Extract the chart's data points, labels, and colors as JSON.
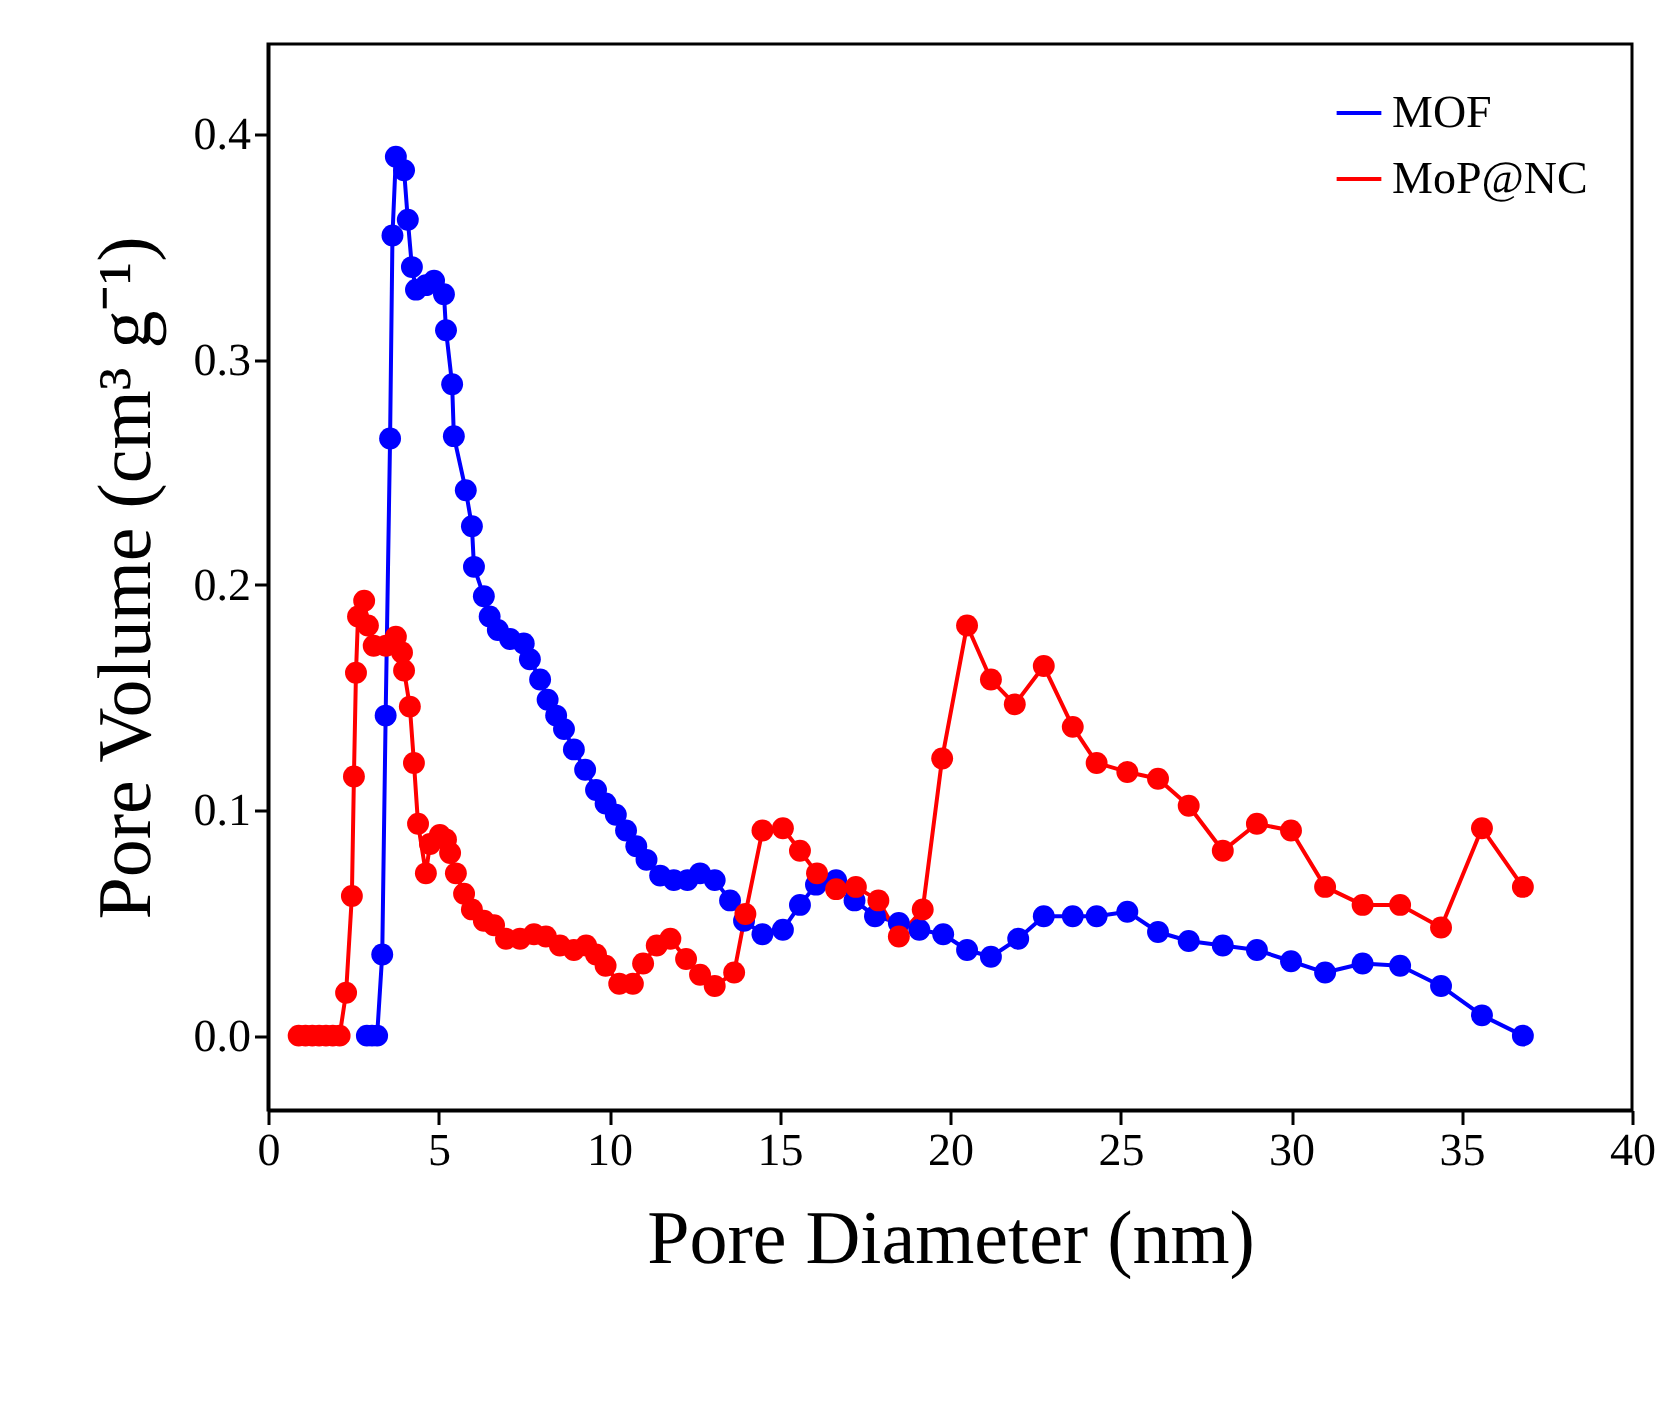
{
  "chart_data": {
    "type": "line",
    "xlabel": "Pore Diameter (nm)",
    "ylabel": "Pore Volume (cm³ g⁻¹)",
    "xlim": [
      0,
      40
    ],
    "xticks": [
      0,
      5,
      10,
      15,
      20,
      25,
      30,
      35,
      40
    ],
    "ylim": [
      -0.033,
      0.44
    ],
    "yticks": [
      {
        "value": 0,
        "label": "0.0"
      },
      0.1,
      0.2,
      0.3,
      0.4
    ],
    "grid": false,
    "legend": "top right",
    "marker": "circle",
    "line_style": "solid",
    "series": [
      {
        "name": "MOF",
        "color": "#0000ff",
        "x": [
          2.9,
          3.05,
          3.2,
          3.35,
          3.45,
          3.58,
          3.65,
          3.75,
          3.99,
          4.1,
          4.22,
          4.34,
          4.63,
          4.87,
          5.16,
          5.22,
          5.4,
          5.45,
          5.8,
          5.98,
          6.04,
          6.33,
          6.5,
          6.74,
          7.1,
          7.5,
          7.68,
          7.98,
          8.2,
          8.45,
          8.68,
          8.97,
          9.3,
          9.62,
          9.9,
          10.2,
          10.5,
          10.8,
          11.1,
          11.5,
          11.9,
          12.3,
          12.67,
          13.1,
          13.55,
          13.96,
          14.5,
          15.1,
          15.6,
          16.07,
          16.66,
          17.2,
          17.8,
          18.5,
          19.1,
          19.8,
          20.5,
          21.2,
          22.0,
          22.75,
          23.6,
          24.3,
          25.2,
          26.1,
          27.0,
          28.0,
          29.0,
          30.0,
          31.0,
          32.1,
          33.2,
          34.4,
          35.6,
          36.8
        ],
        "values": [
          0,
          0,
          0,
          0.036,
          0.142,
          0.265,
          0.355,
          0.39,
          0.384,
          0.362,
          0.341,
          0.331,
          0.333,
          0.335,
          0.329,
          0.313,
          0.289,
          0.266,
          0.242,
          0.226,
          0.208,
          0.195,
          0.186,
          0.18,
          0.176,
          0.174,
          0.167,
          0.158,
          0.149,
          0.142,
          0.136,
          0.127,
          0.118,
          0.109,
          0.103,
          0.098,
          0.091,
          0.084,
          0.078,
          0.071,
          0.069,
          0.069,
          0.072,
          0.069,
          0.06,
          0.051,
          0.045,
          0.047,
          0.058,
          0.067,
          0.069,
          0.06,
          0.053,
          0.05,
          0.047,
          0.045,
          0.038,
          0.035,
          0.043,
          0.053,
          0.053,
          0.053,
          0.055,
          0.046,
          0.042,
          0.04,
          0.038,
          0.033,
          0.028,
          0.032,
          0.031,
          0.022,
          0.009,
          0
        ]
      },
      {
        "name": "MoP@NC",
        "color": "#ff0000",
        "x": [
          0.9,
          1.1,
          1.3,
          1.5,
          1.7,
          1.9,
          2.1,
          2.29,
          2.46,
          2.52,
          2.58,
          2.64,
          2.82,
          2.93,
          3.1,
          3.46,
          3.75,
          3.93,
          3.99,
          4.16,
          4.28,
          4.4,
          4.63,
          4.75,
          5.04,
          5.22,
          5.34,
          5.51,
          5.75,
          5.98,
          6.33,
          6.63,
          6.98,
          7.39,
          7.8,
          8.15,
          8.56,
          8.97,
          9.33,
          9.62,
          9.9,
          10.3,
          10.7,
          11.0,
          11.4,
          11.8,
          12.26,
          12.67,
          13.1,
          13.67,
          14.0,
          14.5,
          15.1,
          15.6,
          16.1,
          16.66,
          17.24,
          17.9,
          18.5,
          19.2,
          19.77,
          20.5,
          21.2,
          21.9,
          22.75,
          23.6,
          24.3,
          25.2,
          26.1,
          27.0,
          28.0,
          29.0,
          30.0,
          31.0,
          32.1,
          33.2,
          34.4,
          35.6,
          36.8
        ],
        "values": [
          0,
          0,
          0,
          0,
          0,
          0,
          0,
          0.019,
          0.062,
          0.115,
          0.161,
          0.186,
          0.193,
          0.182,
          0.173,
          0.173,
          0.177,
          0.17,
          0.162,
          0.146,
          0.121,
          0.094,
          0.072,
          0.085,
          0.089,
          0.087,
          0.081,
          0.072,
          0.063,
          0.056,
          0.051,
          0.049,
          0.043,
          0.043,
          0.045,
          0.044,
          0.04,
          0.038,
          0.04,
          0.036,
          0.031,
          0.023,
          0.023,
          0.032,
          0.04,
          0.043,
          0.034,
          0.027,
          0.022,
          0.028,
          0.054,
          0.091,
          0.092,
          0.082,
          0.072,
          0.065,
          0.066,
          0.06,
          0.044,
          0.056,
          0.123,
          0.182,
          0.158,
          0.147,
          0.164,
          0.137,
          0.121,
          0.117,
          0.114,
          0.102,
          0.082,
          0.094,
          0.091,
          0.066,
          0.058,
          0.058,
          0.048,
          0.092,
          0.066
        ]
      }
    ]
  }
}
